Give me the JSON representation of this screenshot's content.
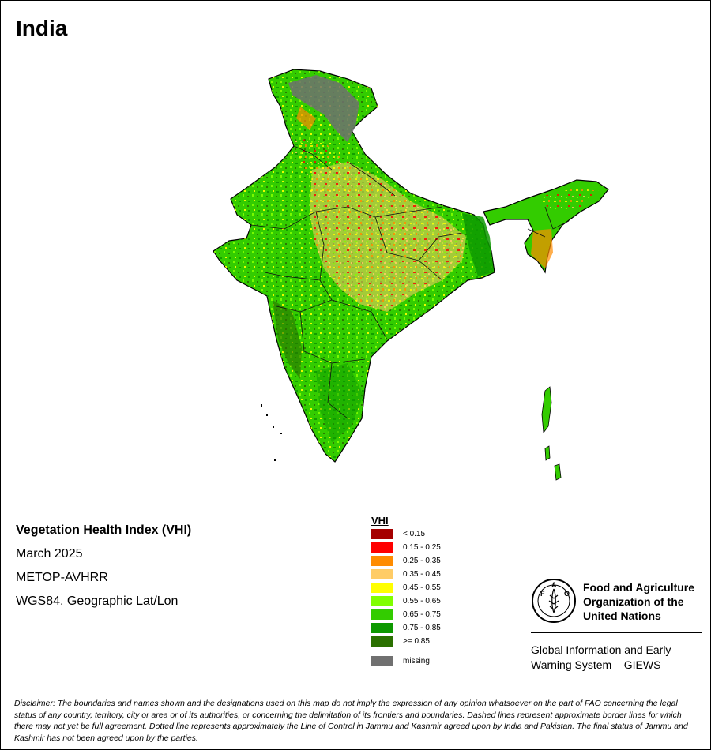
{
  "map_title": "India",
  "info": {
    "index_name": "Vegetation Health Index (VHI)",
    "period": "March 2025",
    "sensor": "METOP-AVHRR",
    "projection": "WGS84, Geographic Lat/Lon"
  },
  "legend": {
    "title": "VHI",
    "classes": [
      {
        "label": "< 0.15",
        "color": "#a50000"
      },
      {
        "label": "0.15 - 0.25",
        "color": "#ff0000"
      },
      {
        "label": "0.25 - 0.35",
        "color": "#ff8c00"
      },
      {
        "label": "0.35 - 0.45",
        "color": "#ffcc66"
      },
      {
        "label": "0.45 - 0.55",
        "color": "#ffff00"
      },
      {
        "label": "0.55 - 0.65",
        "color": "#80ff00"
      },
      {
        "label": "0.65 - 0.75",
        "color": "#33cc00"
      },
      {
        "label": "0.75 - 0.85",
        "color": "#0d9900"
      },
      {
        "label": ">= 0.85",
        "color": "#2a7000"
      }
    ],
    "missing": {
      "label": "missing",
      "color": "#707070"
    }
  },
  "org": {
    "logo_text": "FAO",
    "logo_ring_text": "FIAT PANIS",
    "name_line1": "Food and Agriculture",
    "name_line2": "Organization of the",
    "name_line3": "United Nations",
    "system_line1": "Global Information and Early",
    "system_line2": "Warning System – GIEWS"
  },
  "disclaimer": "Disclaimer: The boundaries and names shown and the designations used on this map do not imply the expression of any opinion whatsoever on the part of FAO concerning the legal status of any country, territory, city or area or of its authorities, or concerning the delimitation of its frontiers and boundaries. Dashed lines represent approximate border lines for which there may not yet be full agreement. Dotted line represents approximately the Line of Control in Jammu and Kashmir agreed upon by India and Pakistan. The final status of Jammu and Kashmir has not been agreed upon by the parties."
}
